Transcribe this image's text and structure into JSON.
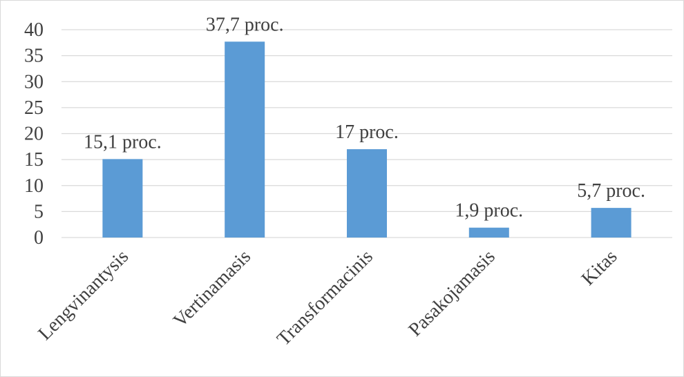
{
  "chart_data": {
    "type": "bar",
    "categories": [
      "Lengvinantysis",
      "Vertinamasis",
      "Transformacinis",
      "Pasakojamasis",
      "Kitas"
    ],
    "values": [
      15.1,
      37.7,
      17,
      1.9,
      5.7
    ],
    "data_labels": [
      "15,1 proc.",
      "37,7 proc.",
      "17 proc.",
      "1,9 proc.",
      "5,7 proc."
    ],
    "y_ticks": [
      "0",
      "5",
      "10",
      "15",
      "20",
      "25",
      "30",
      "35",
      "40"
    ],
    "ylim": [
      0,
      40
    ],
    "title": "",
    "xlabel": "",
    "ylabel": "",
    "grid": true,
    "legend": "none",
    "colors": {
      "bar": "#5b9bd5",
      "grid": "#d9d9d9",
      "text": "#404040"
    }
  }
}
